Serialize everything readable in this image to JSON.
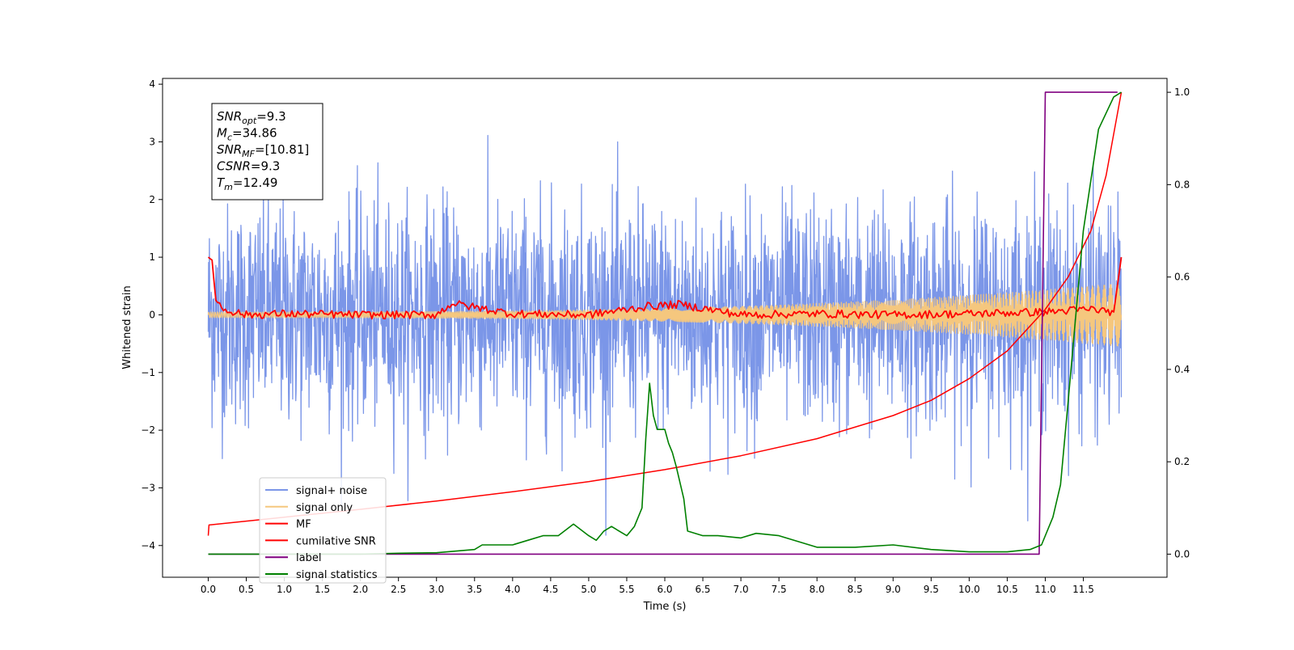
{
  "chart_data": {
    "type": "line",
    "xlabel": "Time (s)",
    "ylabel": "Whitened strain",
    "xlim": [
      -0.6,
      12.6
    ],
    "ylim": [
      -4.55,
      4.1
    ],
    "ylim_right": [
      -0.05,
      1.03
    ],
    "x_ticks": [
      0.0,
      0.5,
      1.0,
      1.5,
      2.0,
      2.5,
      3.0,
      3.5,
      4.0,
      4.5,
      5.0,
      5.5,
      6.0,
      6.5,
      7.0,
      7.5,
      8.0,
      8.5,
      9.0,
      9.5,
      10.0,
      10.5,
      11.0,
      11.5
    ],
    "x_tick_labels": [
      "0.0",
      "0.5",
      "1.0",
      "1.5",
      "2.0",
      "2.5",
      "3.0",
      "3.5",
      "4.0",
      "4.5",
      "5.0",
      "5.5",
      "6.0",
      "6.5",
      "7.0",
      "7.5",
      "8.0",
      "8.5",
      "9.0",
      "9.5",
      "10.0",
      "10.5",
      "11.0",
      "11.5"
    ],
    "y_ticks": [
      4,
      3,
      2,
      1,
      0,
      -1,
      -2,
      -3,
      -4
    ],
    "y_tick_labels": [
      "4",
      "3",
      "2",
      "1",
      "0",
      "−1",
      "−2",
      "−3",
      "−4"
    ],
    "y_ticks_right": [
      0.0,
      0.2,
      0.4,
      0.6,
      0.8,
      1.0
    ],
    "y_tick_labels_right": [
      "0.0",
      "0.2",
      "0.4",
      "0.6",
      "0.8",
      "1.0"
    ],
    "grid": false,
    "legend_placement": "lower-left",
    "annotation": [
      {
        "base": "SNR",
        "sub": "opt",
        "rest": "=9.3"
      },
      {
        "base": "M",
        "sub": "c",
        "rest": "=34.86"
      },
      {
        "base": "SNR",
        "sub": "MF",
        "rest": "=[10.81]"
      },
      {
        "base": "CSNR",
        "sub": "",
        "rest": "=9.3"
      },
      {
        "base": "T",
        "sub": "m",
        "rest": "=12.49"
      }
    ],
    "series": [
      {
        "name": "signal+ noise",
        "color": "#7b96e8",
        "axis": "left",
        "style": "noise",
        "x_range": [
          0.0,
          12.0
        ],
        "amplitude_std": 0.95,
        "peak_max": 3.72,
        "peak_min": -4.2
      },
      {
        "name": "signal only",
        "color": "#f5c77e",
        "axis": "left",
        "style": "chirp",
        "x_range": [
          0.0,
          12.0
        ],
        "amplitude_start": 0.05,
        "amplitude_end": 0.55
      },
      {
        "name": "MF",
        "color": "#ff0000",
        "axis": "left",
        "x": [
          0.0,
          0.05,
          0.1,
          0.2,
          0.5,
          1.0,
          2.0,
          3.0,
          3.2,
          4.0,
          5.0,
          5.8,
          6.2,
          7.0,
          8.0,
          9.0,
          10.0,
          11.0,
          11.6,
          11.9,
          12.0
        ],
        "y": [
          1.0,
          0.95,
          0.25,
          0.1,
          0.0,
          0.02,
          0.0,
          0.0,
          0.2,
          0.02,
          0.0,
          0.15,
          0.18,
          0.0,
          0.02,
          0.0,
          0.02,
          0.05,
          0.1,
          0.05,
          1.0
        ]
      },
      {
        "name": "cumilative SNR",
        "color": "#ff0000",
        "axis": "right",
        "x": [
          0.0,
          0.01,
          1.0,
          2.0,
          3.0,
          4.0,
          5.0,
          6.0,
          7.0,
          8.0,
          9.0,
          9.5,
          10.0,
          10.5,
          11.0,
          11.3,
          11.6,
          11.8,
          12.0
        ],
        "y": [
          0.04,
          0.063,
          0.08,
          0.097,
          0.115,
          0.135,
          0.157,
          0.183,
          0.213,
          0.25,
          0.3,
          0.333,
          0.38,
          0.44,
          0.53,
          0.6,
          0.7,
          0.82,
          1.0
        ]
      },
      {
        "name": "label",
        "color": "#800080",
        "axis": "right",
        "x": [
          0.0,
          10.92,
          11.0,
          11.95
        ],
        "y": [
          0.0,
          0.0,
          1.0,
          1.0
        ]
      },
      {
        "name": "signal statistics",
        "color": "#008000",
        "axis": "right",
        "x": [
          0.0,
          1.0,
          2.0,
          2.5,
          3.0,
          3.5,
          3.6,
          4.0,
          4.2,
          4.4,
          4.6,
          4.8,
          5.0,
          5.1,
          5.2,
          5.3,
          5.5,
          5.6,
          5.7,
          5.75,
          5.8,
          5.85,
          5.9,
          6.0,
          6.05,
          6.1,
          6.15,
          6.25,
          6.3,
          6.5,
          6.7,
          7.0,
          7.2,
          7.5,
          8.0,
          8.5,
          9.0,
          9.5,
          10.0,
          10.5,
          10.8,
          10.95,
          11.1,
          11.2,
          11.3,
          11.5,
          11.7,
          11.9,
          12.0
        ],
        "y": [
          0.0,
          0.0,
          0.0,
          0.002,
          0.003,
          0.01,
          0.02,
          0.02,
          0.03,
          0.04,
          0.04,
          0.065,
          0.04,
          0.03,
          0.05,
          0.06,
          0.04,
          0.06,
          0.1,
          0.25,
          0.37,
          0.3,
          0.27,
          0.27,
          0.24,
          0.22,
          0.19,
          0.12,
          0.05,
          0.04,
          0.04,
          0.035,
          0.045,
          0.04,
          0.015,
          0.015,
          0.02,
          0.01,
          0.005,
          0.005,
          0.01,
          0.02,
          0.08,
          0.15,
          0.33,
          0.7,
          0.92,
          0.99,
          1.0
        ]
      }
    ]
  }
}
